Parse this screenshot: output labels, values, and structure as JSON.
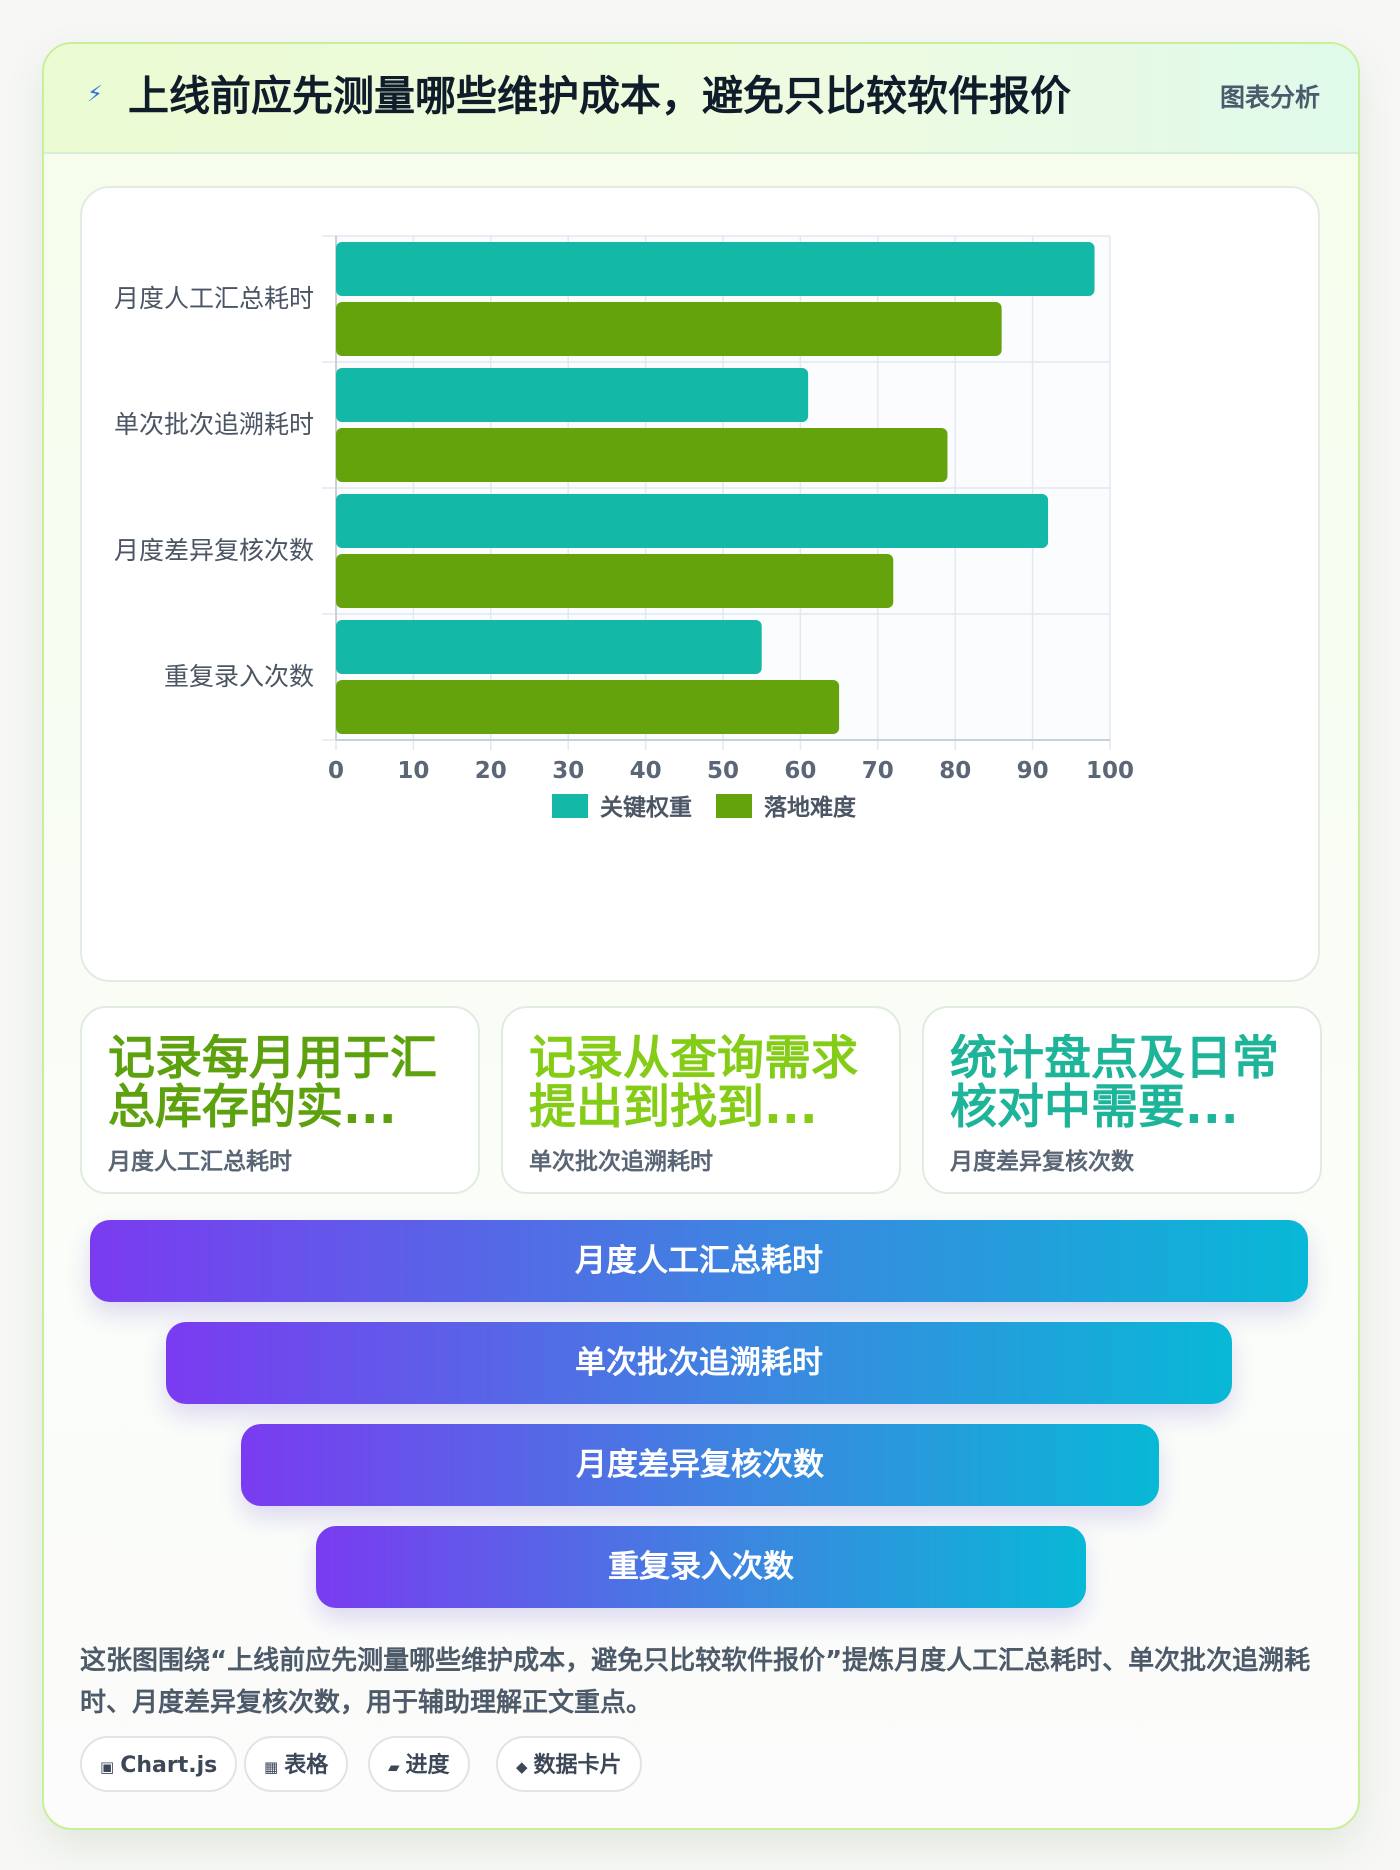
{
  "header": {
    "icon": "lightning-icon",
    "title": "上线前应先测量哪些维护成本，避免只比较软件报价",
    "tag": "图表分析"
  },
  "chart_data": {
    "type": "bar",
    "orientation": "horizontal",
    "categories": [
      "月度人工汇总耗时",
      "单次批次追溯耗时",
      "月度差异复核次数",
      "重复录入次数"
    ],
    "series": [
      {
        "name": "关键权重",
        "color": "#14b8a6",
        "values": [
          98,
          61,
          92,
          55
        ]
      },
      {
        "name": "落地难度",
        "color": "#65a30d",
        "values": [
          86,
          79,
          72,
          65
        ]
      }
    ],
    "xlim": [
      0,
      100
    ],
    "xticks": [
      "0",
      "10",
      "20",
      "30",
      "40",
      "50",
      "60",
      "70",
      "80",
      "90",
      "100"
    ],
    "grid": true,
    "legend": "bottom"
  },
  "stats": [
    {
      "big": "记录每月用于汇总库存的实...",
      "small": "月度人工汇总耗时",
      "color": "#5ea10f"
    },
    {
      "big": "记录从查询需求提出到找到...",
      "small": "单次批次追溯耗时",
      "color": "#84cc16"
    },
    {
      "big": "统计盘点及日常核对中需要...",
      "small": "月度差异复核次数",
      "color": "#1db49a"
    }
  ],
  "funnel": [
    "月度人工汇总耗时",
    "单次批次追溯耗时",
    "月度差异复核次数",
    "重复录入次数"
  ],
  "description": "这张图围绕“上线前应先测量哪些维护成本，避免只比较软件报价”提炼月度人工汇总耗时、单次批次追溯耗时、月度差异复核次数，用于辅助理解正文重点。",
  "chips": [
    {
      "icon": "▣",
      "label": "Chart.js"
    },
    {
      "icon": "▦",
      "label": "表格"
    },
    {
      "icon": "▰",
      "label": "进度"
    },
    {
      "icon": "◆",
      "label": "数据卡片"
    }
  ]
}
